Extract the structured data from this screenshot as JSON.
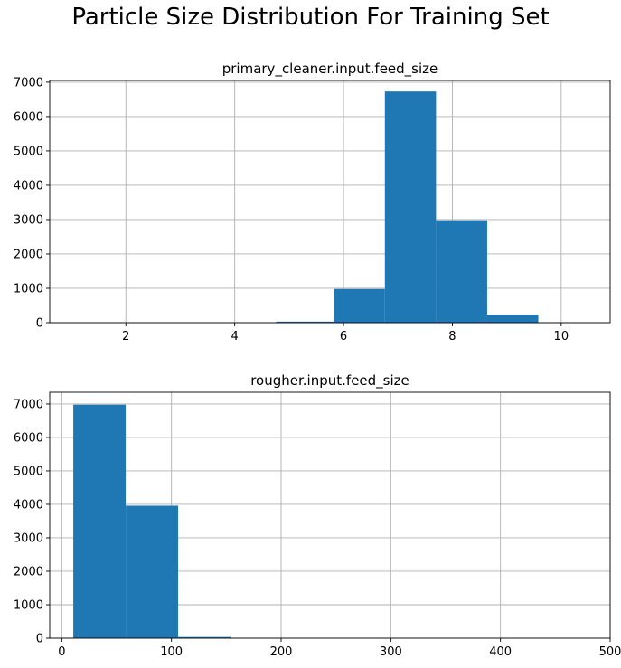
{
  "figure": {
    "title": "Particle Size Distribution For Training Set"
  },
  "chart_data": [
    {
      "type": "bar",
      "title": "primary_cleaner.input.feed_size",
      "xlabel": "",
      "ylabel": "",
      "grid": true,
      "color": "#1f77b4",
      "xlim": [
        0.6,
        10.9
      ],
      "ylim": [
        0,
        7050
      ],
      "xticks": [
        2,
        4,
        6,
        8,
        10
      ],
      "yticks": [
        0,
        1000,
        2000,
        3000,
        4000,
        5000,
        6000,
        7000
      ],
      "bins": [
        {
          "x0": 1.0,
          "x1": 1.94,
          "value": 3
        },
        {
          "x0": 1.94,
          "x1": 2.88,
          "value": 0
        },
        {
          "x0": 2.88,
          "x1": 3.82,
          "value": 0
        },
        {
          "x0": 3.82,
          "x1": 4.76,
          "value": 5
        },
        {
          "x0": 4.76,
          "x1": 5.82,
          "value": 30
        },
        {
          "x0": 5.82,
          "x1": 6.76,
          "value": 980
        },
        {
          "x0": 6.76,
          "x1": 7.7,
          "value": 6730
        },
        {
          "x0": 7.7,
          "x1": 8.64,
          "value": 2980
        },
        {
          "x0": 8.64,
          "x1": 9.58,
          "value": 230
        },
        {
          "x0": 9.58,
          "x1": 10.5,
          "value": 3
        }
      ]
    },
    {
      "type": "bar",
      "title": "rougher.input.feed_size",
      "xlabel": "",
      "ylabel": "",
      "grid": true,
      "color": "#1f77b4",
      "xlim": [
        -11,
        500
      ],
      "ylim": [
        0,
        7350
      ],
      "xticks": [
        0,
        100,
        200,
        300,
        400,
        500
      ],
      "yticks": [
        0,
        1000,
        2000,
        3000,
        4000,
        5000,
        6000,
        7000
      ],
      "bins": [
        {
          "x0": 10.5,
          "x1": 58.3,
          "value": 6980
        },
        {
          "x0": 58.3,
          "x1": 106.1,
          "value": 3960
        },
        {
          "x0": 106.1,
          "x1": 153.9,
          "value": 35
        },
        {
          "x0": 153.9,
          "x1": 201.7,
          "value": 3
        },
        {
          "x0": 201.7,
          "x1": 249.5,
          "value": 1
        },
        {
          "x0": 249.5,
          "x1": 297.3,
          "value": 1
        },
        {
          "x0": 297.3,
          "x1": 345.1,
          "value": 0
        },
        {
          "x0": 345.1,
          "x1": 392.9,
          "value": 0
        },
        {
          "x0": 392.9,
          "x1": 440.7,
          "value": 0
        },
        {
          "x0": 440.7,
          "x1": 488.5,
          "value": 1
        }
      ]
    }
  ]
}
